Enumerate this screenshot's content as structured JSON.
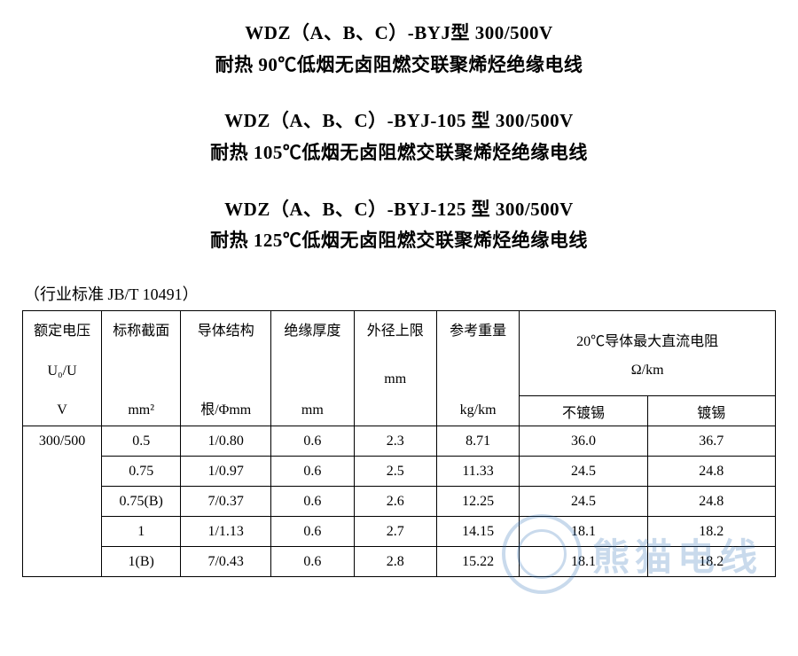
{
  "headings": [
    {
      "line1": "WDZ（A、B、C）-BYJ型 300/500V",
      "line2": "耐热 90℃低烟无卤阻燃交联聚烯烃绝缘电线"
    },
    {
      "line1": "WDZ（A、B、C）-BYJ-105 型 300/500V",
      "line2": "耐热 105℃低烟无卤阻燃交联聚烯烃绝缘电线"
    },
    {
      "line1": "WDZ（A、B、C）-BYJ-125 型 300/500V",
      "line2": "耐热 125℃低烟无卤阻燃交联聚烯烃绝缘电线"
    }
  ],
  "standard_note": "（行业标准 JB/T 10491）",
  "table": {
    "col_widths_pct": [
      10.5,
      10.5,
      12,
      11,
      11,
      11,
      17,
      17
    ],
    "header": {
      "voltage": {
        "l1": "额定电压",
        "l2": "U₀/U",
        "l3": "V"
      },
      "cross": {
        "l1": "标称截面",
        "l2": "",
        "l3": "mm²"
      },
      "struct": {
        "l1": "导体结构",
        "l2": "",
        "l3": "根/Φmm"
      },
      "insul": {
        "l1": "绝缘厚度",
        "l2": "",
        "l3": "mm"
      },
      "od": {
        "l1": "外径上限",
        "l2": "mm",
        "l3": ""
      },
      "weight": {
        "l1": "参考重量",
        "l2": "",
        "l3": "kg/km"
      },
      "resist_top1": "20℃导体最大直流电阻",
      "resist_top2": "Ω/km",
      "resist_sub_untinned": "不镀锡",
      "resist_sub_tinned": "镀锡"
    },
    "voltage_value": "300/500",
    "rows": [
      {
        "cs": "0.5",
        "struct": "1/0.80",
        "insul": "0.6",
        "od": "2.3",
        "wt": "8.71",
        "r1": "36.0",
        "r2": "36.7"
      },
      {
        "cs": "0.75",
        "struct": "1/0.97",
        "insul": "0.6",
        "od": "2.5",
        "wt": "11.33",
        "r1": "24.5",
        "r2": "24.8"
      },
      {
        "cs": "0.75(B)",
        "struct": "7/0.37",
        "insul": "0.6",
        "od": "2.6",
        "wt": "12.25",
        "r1": "24.5",
        "r2": "24.8"
      },
      {
        "cs": "1",
        "struct": "1/1.13",
        "insul": "0.6",
        "od": "2.7",
        "wt": "14.15",
        "r1": "18.1",
        "r2": "18.2"
      },
      {
        "cs": "1(B)",
        "struct": "7/0.43",
        "insul": "0.6",
        "od": "2.8",
        "wt": "15.22",
        "r1": "18.1",
        "r2": "18.2"
      }
    ]
  },
  "watermark": {
    "text": "熊猫电线",
    "color": "#2e6fb8"
  }
}
